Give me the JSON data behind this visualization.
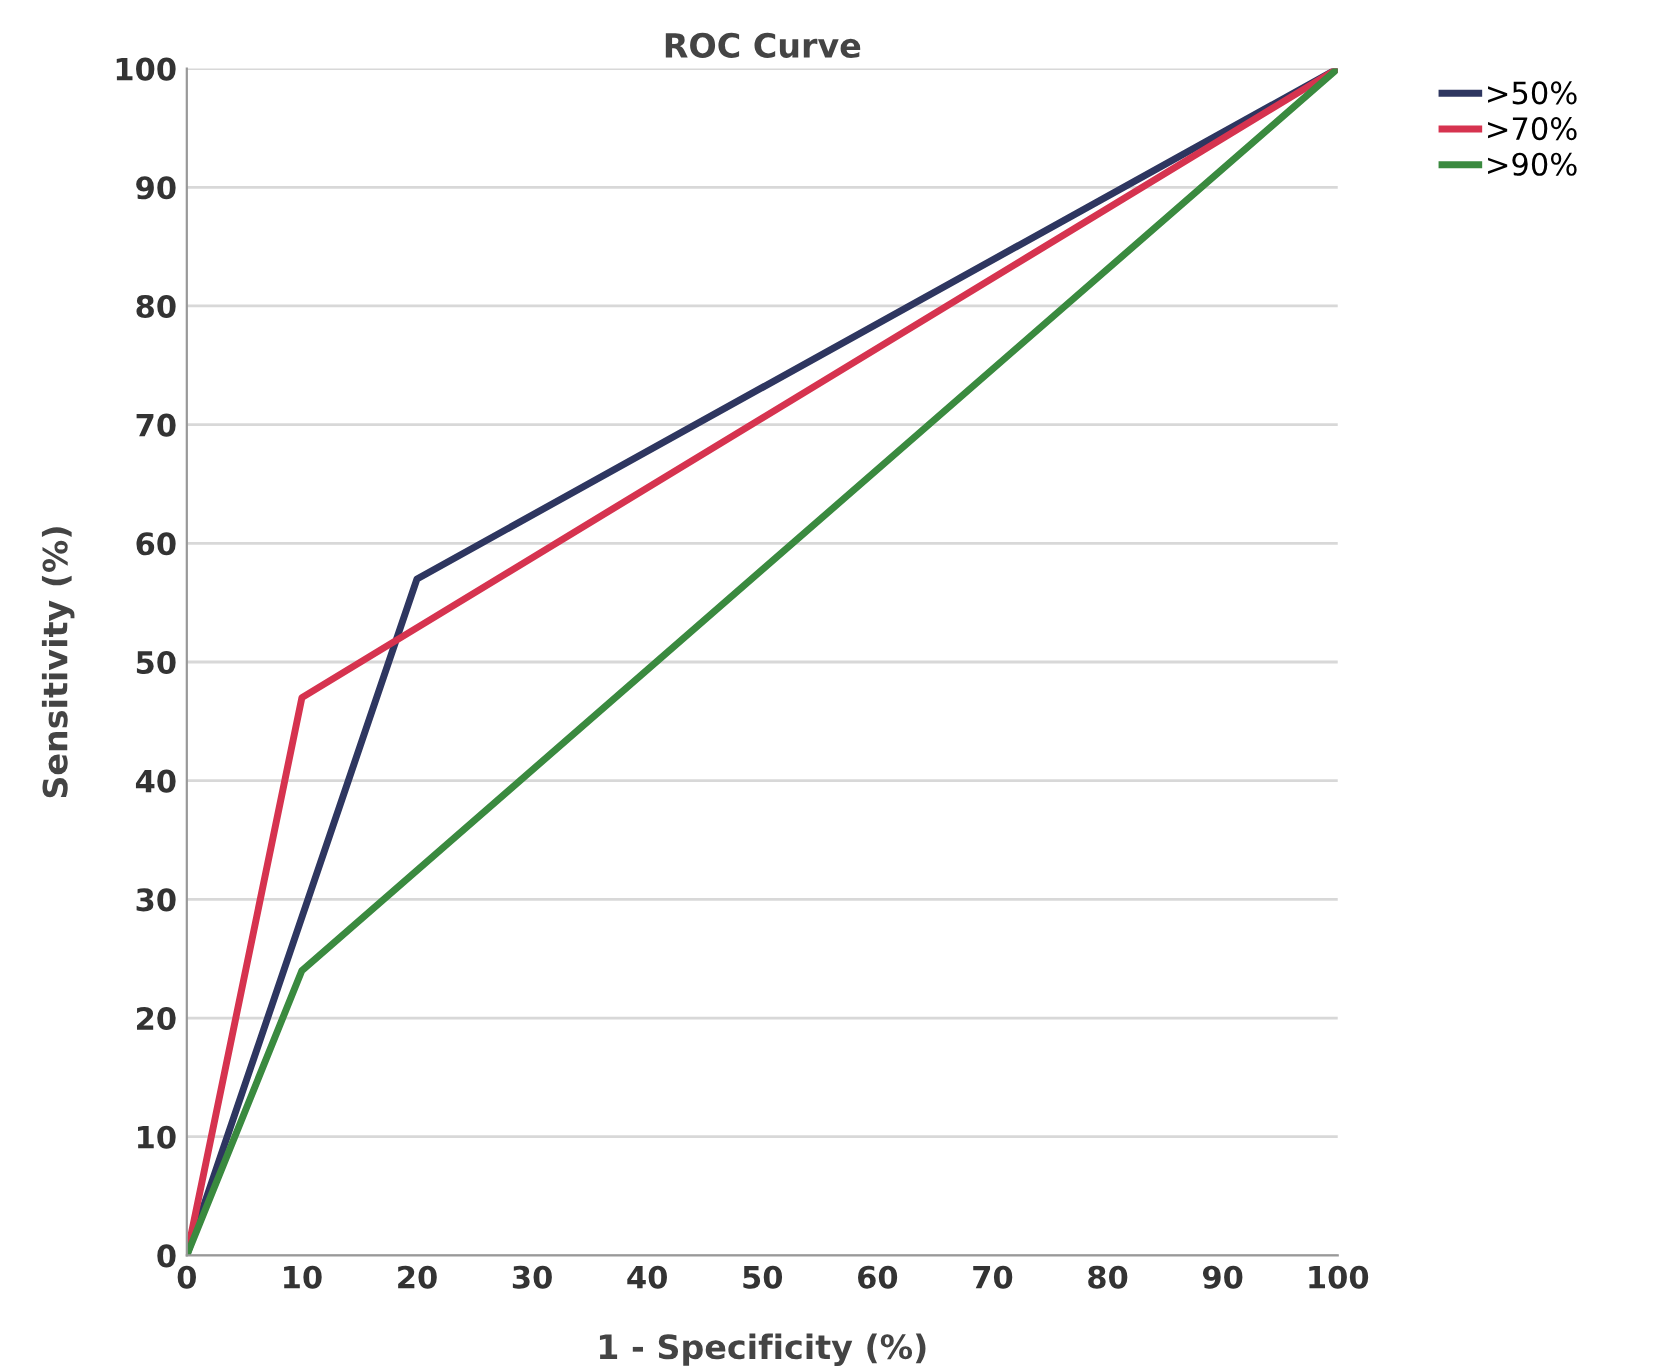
{
  "chart_data": {
    "type": "line",
    "title": "ROC Curve",
    "xlabel": "1 - Specificity (%)",
    "ylabel": "Sensitivity (%)",
    "series": [
      {
        "name": ">50%",
        "color": "#2e3660",
        "x": [
          0,
          20,
          100
        ],
        "values": [
          0,
          57,
          100
        ]
      },
      {
        "name": ">70%",
        "color": "#d6334f",
        "x": [
          0,
          10,
          100
        ],
        "values": [
          0,
          47,
          100
        ]
      },
      {
        "name": ">90%",
        "color": "#3a8a3f",
        "x": [
          0,
          10,
          100
        ],
        "values": [
          0,
          24,
          100
        ]
      }
    ],
    "xlim": [
      0,
      100
    ],
    "ylim": [
      0,
      100
    ],
    "xticks": [
      0,
      10,
      20,
      30,
      40,
      50,
      60,
      70,
      80,
      90,
      100
    ],
    "yticks": [
      0,
      10,
      20,
      30,
      40,
      50,
      60,
      70,
      80,
      90,
      100
    ],
    "grid": "y",
    "legend": "top right",
    "marker": "none",
    "line_style": "solid"
  }
}
